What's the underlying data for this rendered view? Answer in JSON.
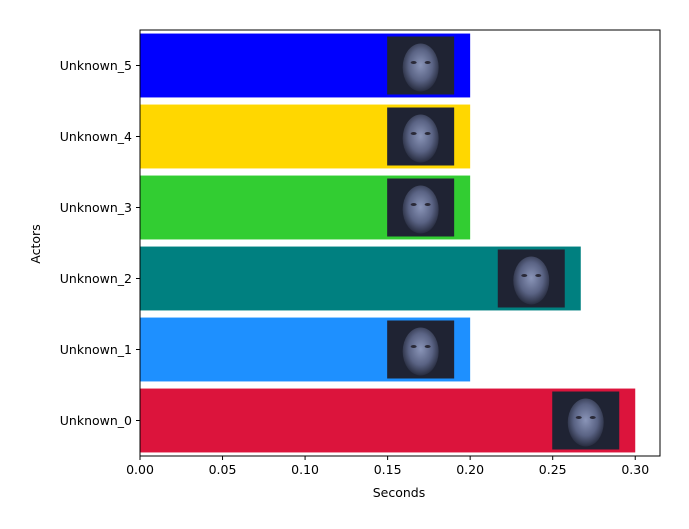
{
  "chart_data": {
    "type": "bar",
    "orientation": "horizontal",
    "xlabel": "Seconds",
    "ylabel": "Actors",
    "xlim": [
      0,
      0.315
    ],
    "xticks": [
      "0.00",
      "0.05",
      "0.10",
      "0.15",
      "0.20",
      "0.25",
      "0.30"
    ],
    "categories": [
      "Unknown_0",
      "Unknown_1",
      "Unknown_2",
      "Unknown_3",
      "Unknown_4",
      "Unknown_5"
    ],
    "values": [
      0.3,
      0.2,
      0.267,
      0.2,
      0.2,
      0.2
    ],
    "colors": [
      "#dc143c",
      "#1e90ff",
      "#008080",
      "#32cd32",
      "#ffd700",
      "#0000ff"
    ],
    "thumbnails": [
      "face-thumbnail",
      "face-thumbnail",
      "face-thumbnail",
      "face-thumbnail",
      "face-thumbnail",
      "face-thumbnail"
    ],
    "grid": false
  }
}
